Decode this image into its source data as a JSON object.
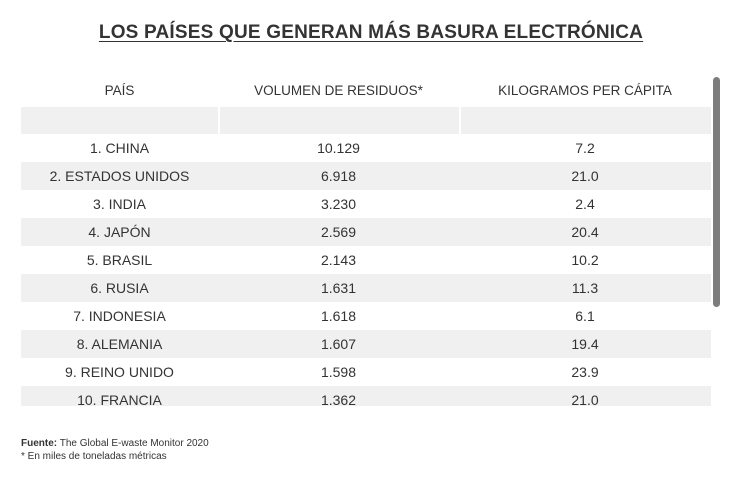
{
  "title": "LOS PAÍSES QUE GENERAN MÁS BASURA ELECTRÓNICA",
  "chart_data": {
    "type": "table",
    "title": "LOS PAÍSES QUE GENERAN MÁS BASURA ELECTRÓNICA",
    "columns": [
      "PAÍS",
      "VOLUMEN DE RESIDUOS*",
      "KILOGRAMOS PER CÁPITA"
    ],
    "rows": [
      [
        "1. CHINA",
        "10.129",
        "7.2"
      ],
      [
        "2. ESTADOS UNIDOS",
        "6.918",
        "21.0"
      ],
      [
        "3. INDIA",
        "3.230",
        "2.4"
      ],
      [
        "4. JAPÓN",
        "2.569",
        "20.4"
      ],
      [
        "5. BRASIL",
        "2.143",
        "10.2"
      ],
      [
        "6. RUSIA",
        "1.631",
        "11.3"
      ],
      [
        "7. INDONESIA",
        "1.618",
        "6.1"
      ],
      [
        "8. ALEMANIA",
        "1.607",
        "19.4"
      ],
      [
        "9. REINO UNIDO",
        "1.598",
        "23.9"
      ],
      [
        "10. FRANCIA",
        "1.362",
        "21.0"
      ]
    ]
  },
  "footer": {
    "source_label": "Fuente:",
    "source_text": "The Global E-waste Monitor 2020",
    "note": "* En miles de toneladas métricas"
  },
  "colors": {
    "text": "#333333",
    "stripe": "#f0f0f0",
    "scrollbar": "#7d7d7d"
  }
}
